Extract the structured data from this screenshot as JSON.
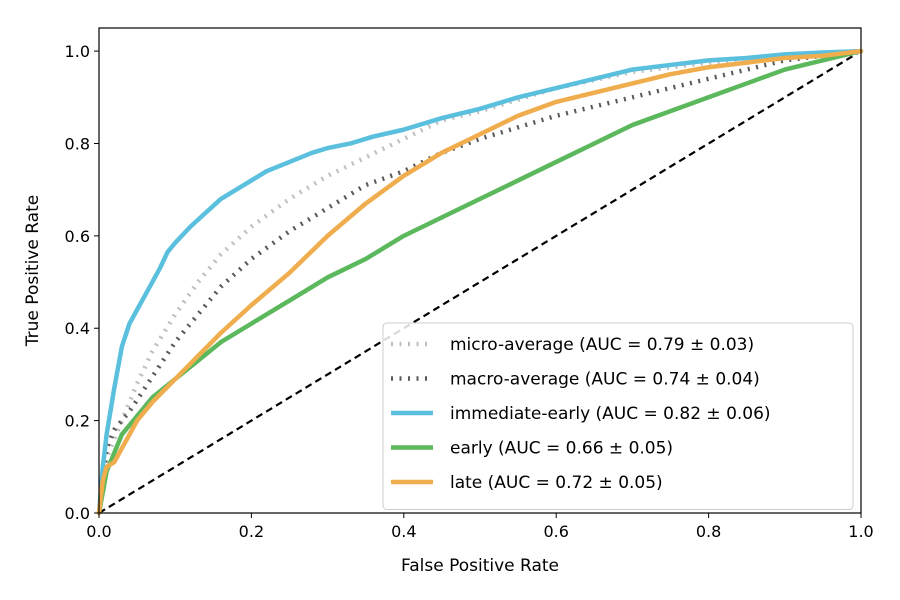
{
  "chart_data": {
    "type": "line",
    "title": "",
    "xlabel": "False Positive Rate",
    "ylabel": "True Positive Rate",
    "xlim": [
      0.0,
      1.0
    ],
    "ylim": [
      0.0,
      1.05
    ],
    "xticks": [
      0.0,
      0.2,
      0.4,
      0.6,
      0.8,
      1.0
    ],
    "yticks": [
      0.0,
      0.2,
      0.4,
      0.6,
      0.8,
      1.0
    ],
    "xtick_labels": [
      "0.0",
      "0.2",
      "0.4",
      "0.6",
      "0.8",
      "1.0"
    ],
    "ytick_labels": [
      "0.0",
      "0.2",
      "0.4",
      "0.6",
      "0.8",
      "1.0"
    ],
    "grid": false,
    "legend_position": "lower-right",
    "series": [
      {
        "name": "micro-average (AUC = 0.79 ± 0.03)",
        "color": "#bfbfbf",
        "style": "dotted",
        "x": [
          0,
          0.01,
          0.03,
          0.05,
          0.07,
          0.1,
          0.13,
          0.16,
          0.2,
          0.25,
          0.3,
          0.35,
          0.4,
          0.45,
          0.5,
          0.6,
          0.7,
          0.8,
          0.9,
          1.0
        ],
        "y": [
          0,
          0.12,
          0.2,
          0.28,
          0.35,
          0.43,
          0.5,
          0.56,
          0.62,
          0.68,
          0.73,
          0.77,
          0.81,
          0.85,
          0.87,
          0.92,
          0.955,
          0.975,
          0.99,
          1.0
        ]
      },
      {
        "name": "macro-average (AUC = 0.74 ± 0.04)",
        "color": "#595959",
        "style": "dotted",
        "x": [
          0,
          0.01,
          0.02,
          0.04,
          0.06,
          0.08,
          0.1,
          0.13,
          0.16,
          0.2,
          0.25,
          0.3,
          0.35,
          0.4,
          0.45,
          0.5,
          0.6,
          0.7,
          0.8,
          0.9,
          1.0
        ],
        "y": [
          0,
          0.14,
          0.18,
          0.22,
          0.27,
          0.32,
          0.37,
          0.43,
          0.49,
          0.55,
          0.61,
          0.66,
          0.71,
          0.74,
          0.78,
          0.81,
          0.86,
          0.9,
          0.94,
          0.98,
          1.0
        ]
      },
      {
        "name": "immediate-early (AUC = 0.82 ± 0.06)",
        "color": "#5bc0de",
        "style": "solid",
        "x": [
          0,
          0.005,
          0.01,
          0.02,
          0.03,
          0.04,
          0.05,
          0.06,
          0.07,
          0.08,
          0.09,
          0.1,
          0.12,
          0.14,
          0.16,
          0.18,
          0.2,
          0.22,
          0.25,
          0.28,
          0.3,
          0.33,
          0.36,
          0.4,
          0.45,
          0.5,
          0.55,
          0.6,
          0.65,
          0.7,
          0.75,
          0.8,
          0.85,
          0.9,
          0.95,
          1.0
        ],
        "y": [
          0,
          0.1,
          0.17,
          0.27,
          0.36,
          0.41,
          0.44,
          0.47,
          0.5,
          0.53,
          0.565,
          0.585,
          0.62,
          0.65,
          0.68,
          0.7,
          0.72,
          0.74,
          0.76,
          0.78,
          0.79,
          0.8,
          0.815,
          0.83,
          0.855,
          0.875,
          0.9,
          0.92,
          0.94,
          0.96,
          0.97,
          0.98,
          0.985,
          0.993,
          0.997,
          1.0
        ]
      },
      {
        "name": "early (AUC = 0.66 ± 0.05)",
        "color": "#5cb85c",
        "style": "solid",
        "x": [
          0,
          0.01,
          0.02,
          0.03,
          0.05,
          0.07,
          0.1,
          0.13,
          0.16,
          0.2,
          0.25,
          0.3,
          0.35,
          0.4,
          0.45,
          0.5,
          0.55,
          0.6,
          0.65,
          0.7,
          0.75,
          0.8,
          0.85,
          0.9,
          0.95,
          1.0
        ],
        "y": [
          0,
          0.09,
          0.13,
          0.17,
          0.21,
          0.25,
          0.29,
          0.33,
          0.37,
          0.41,
          0.46,
          0.51,
          0.55,
          0.6,
          0.64,
          0.68,
          0.72,
          0.76,
          0.8,
          0.84,
          0.87,
          0.9,
          0.93,
          0.96,
          0.98,
          1.0
        ]
      },
      {
        "name": "late (AUC = 0.72 ± 0.05)",
        "color": "#f0ad4e",
        "style": "solid",
        "x": [
          0,
          0.005,
          0.01,
          0.02,
          0.03,
          0.04,
          0.05,
          0.07,
          0.1,
          0.13,
          0.16,
          0.2,
          0.25,
          0.3,
          0.35,
          0.4,
          0.45,
          0.5,
          0.55,
          0.6,
          0.65,
          0.7,
          0.75,
          0.8,
          0.85,
          0.9,
          0.95,
          1.0
        ],
        "y": [
          0,
          0.07,
          0.1,
          0.11,
          0.14,
          0.17,
          0.2,
          0.24,
          0.29,
          0.34,
          0.39,
          0.45,
          0.52,
          0.6,
          0.67,
          0.73,
          0.78,
          0.82,
          0.86,
          0.89,
          0.91,
          0.93,
          0.95,
          0.965,
          0.975,
          0.985,
          0.99,
          1.0
        ]
      },
      {
        "name": "",
        "color": "#000000",
        "style": "dashed",
        "x": [
          0,
          1.0
        ],
        "y": [
          0,
          1.0
        ]
      }
    ]
  }
}
